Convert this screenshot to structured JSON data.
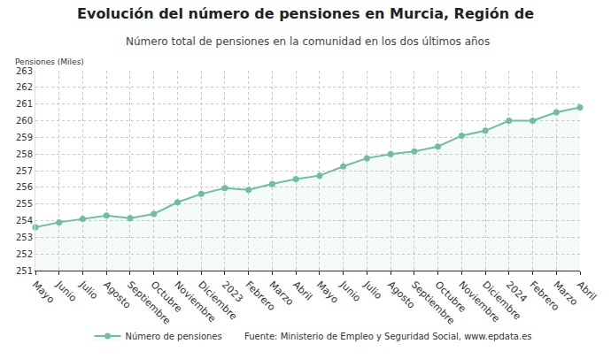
{
  "chart_data": {
    "type": "line",
    "title": "Evolución del número de pensiones en Murcia, Región de",
    "subtitle": "Número total de pensiones en la comunidad en los dos últimos años",
    "y_label": "Pensiones (Miles)",
    "source": "Fuente: Ministerio de Empleo y Seguridad Social, www.epdata.es",
    "categories": [
      "Mayo",
      "Junio",
      "Julio",
      "Agosto",
      "Septiembre",
      "Octubre",
      "Noviembre",
      "Diciembre",
      "2023",
      "Febrero",
      "Marzo",
      "Abril",
      "Mayo",
      "Junio",
      "Julio",
      "Agosto",
      "Septiembre",
      "Octubre",
      "Noviembre",
      "Diciembre",
      "2024",
      "Febrero",
      "Marzo",
      "Abril"
    ],
    "series": [
      {
        "name": "Número de pensiones",
        "color": "#6dbf9f",
        "marker": "circle",
        "values": [
          253.6,
          253.9,
          254.1,
          254.3,
          254.15,
          254.4,
          255.1,
          255.6,
          255.95,
          255.85,
          256.2,
          256.5,
          256.7,
          257.25,
          257.75,
          258.0,
          258.15,
          258.45,
          259.1,
          259.4,
          260.0,
          260.0,
          260.5,
          260.8
        ]
      }
    ],
    "ylim": [
      251,
      263
    ],
    "yticks": [
      251,
      252,
      253,
      254,
      255,
      256,
      257,
      258,
      259,
      260,
      261,
      262,
      263
    ],
    "grid": true,
    "legend": "bottom"
  }
}
